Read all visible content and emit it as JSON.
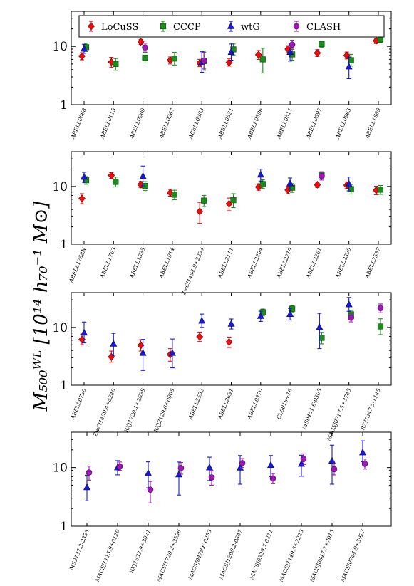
{
  "chart_data": {
    "type": "scatter",
    "y_axis_label": "M₅₀₀ᵂᴸ [10¹⁴ h₇₀⁻¹ M⊙]",
    "y_scale": "log",
    "ylim": [
      1,
      40
    ],
    "yticks": [
      "1",
      "10"
    ],
    "legend": {
      "placement": "top",
      "entries": [
        {
          "name": "LoCuSS",
          "marker": "diamond",
          "color": "#e41010"
        },
        {
          "name": "CCCP",
          "marker": "square",
          "color": "#1f8a1f"
        },
        {
          "name": "wtG",
          "marker": "triangle",
          "color": "#1a1ac8"
        },
        {
          "name": "CLASH",
          "marker": "circle",
          "color": "#9a1ab0"
        }
      ]
    },
    "panels": [
      {
        "clusters": [
          "ABELL0068",
          "ABELL0115",
          "ABELL0209",
          "ABELL0267",
          "ABELL0383",
          "ABELL0521",
          "ABELL0586",
          "ABELL0611",
          "ABELL0697",
          "ABELL0963",
          "ABELL1689"
        ],
        "series": {
          "LoCuSS": [
            [
              0,
              6.8,
              5.9,
              7.8
            ],
            [
              1,
              5.4,
              4.4,
              6.5
            ],
            [
              2,
              12.0,
              10.8,
              13.2
            ],
            [
              3,
              5.8,
              5.0,
              6.6
            ],
            [
              4,
              5.2,
              4.5,
              6.0
            ],
            [
              5,
              5.3,
              4.6,
              6.2
            ],
            [
              6,
              7.2,
              6.0,
              8.5
            ],
            [
              7,
              9.0,
              7.8,
              10.3
            ],
            [
              8,
              7.7,
              6.7,
              8.8
            ],
            [
              9,
              7.0,
              6.1,
              8.0
            ],
            [
              10,
              12.5,
              11.2,
              13.8
            ]
          ],
          "CCCP": [
            [
              0,
              9.7,
              8.2,
              11.3
            ],
            [
              1,
              5.0,
              3.9,
              6.2
            ],
            [
              2,
              6.4,
              5.2,
              7.8
            ],
            [
              3,
              6.2,
              4.8,
              7.9
            ],
            [
              4,
              5.6,
              3.9,
              8.3
            ],
            [
              5,
              8.9,
              7.1,
              11.0
            ],
            [
              6,
              6.0,
              3.5,
              9.3
            ],
            [
              7,
              7.3,
              5.8,
              9.0
            ],
            [
              8,
              11.0,
              9.7,
              12.3
            ],
            [
              9,
              5.8,
              4.6,
              7.3
            ],
            [
              10,
              13.2,
              11.7,
              14.8
            ]
          ],
          "wtG": [
            [
              0,
              9.1,
              7.6,
              10.9
            ],
            [
              4,
              5.4,
              3.6,
              8.1
            ],
            [
              5,
              8.0,
              5.8,
              11.0
            ],
            [
              7,
              8.0,
              5.6,
              11.4
            ],
            [
              9,
              4.5,
              2.8,
              6.6
            ]
          ],
          "CLASH": [
            [
              2,
              9.6,
              8.0,
              11.3
            ],
            [
              4,
              5.7,
              4.1,
              7.9
            ],
            [
              7,
              10.7,
              8.9,
              12.8
            ]
          ]
        }
      },
      {
        "clusters": [
          "ABELL1758N",
          "ABELL1763",
          "ABELL1835",
          "ABELL1914",
          "ZwCl1454.8+2233",
          "ABELL2111",
          "ABELL2204",
          "ABELL2219",
          "ABELL2261",
          "ABELL2390",
          "ABELL2537"
        ],
        "series": {
          "LoCuSS": [
            [
              0,
              6.2,
              5.0,
              7.5
            ],
            [
              1,
              15.5,
              13.8,
              17.3
            ],
            [
              2,
              10.8,
              9.5,
              12.2
            ],
            [
              3,
              7.8,
              6.8,
              8.9
            ],
            [
              4,
              3.7,
              2.3,
              5.3
            ],
            [
              5,
              5.0,
              3.8,
              6.3
            ],
            [
              6,
              9.8,
              8.6,
              11.1
            ],
            [
              7,
              8.7,
              7.5,
              10.0
            ],
            [
              8,
              10.7,
              9.6,
              11.9
            ],
            [
              9,
              10.5,
              9.2,
              11.9
            ],
            [
              10,
              8.6,
              7.2,
              10.1
            ]
          ],
          "CCCP": [
            [
              0,
              12.8,
              10.9,
              14.8
            ],
            [
              1,
              12.0,
              9.8,
              14.5
            ],
            [
              2,
              10.2,
              8.5,
              12.1
            ],
            [
              3,
              7.2,
              5.9,
              8.6
            ],
            [
              4,
              5.7,
              4.5,
              7.0
            ],
            [
              5,
              5.8,
              4.3,
              7.5
            ],
            [
              6,
              11.0,
              9.2,
              13.0
            ],
            [
              7,
              9.5,
              7.9,
              11.2
            ],
            [
              8,
              15.9,
              14.0,
              18.0
            ],
            [
              9,
              9.0,
              7.4,
              10.8
            ],
            [
              10,
              8.8,
              7.3,
              10.4
            ]
          ],
          "wtG": [
            [
              0,
              14.6,
              11.8,
              17.6
            ],
            [
              2,
              15.0,
              10.3,
              22.5
            ],
            [
              6,
              15.9,
              12.4,
              19.9
            ],
            [
              7,
              11.3,
              8.9,
              14.0
            ],
            [
              9,
              11.0,
              8.4,
              14.6
            ]
          ],
          "CLASH": [
            [
              8,
              15.2,
              12.9,
              17.7
            ]
          ]
        }
      },
      {
        "clusters": [
          "ABELL0750",
          "ZwCl1459.4+4240",
          "RXJ1720.1+2638",
          "RXJ2129.6+0005",
          "ABELL2552",
          "ABELL2631",
          "ABELL0370",
          "CL0016+16",
          "MS0451.6-0305",
          "MACSJ0717.5+3745",
          "RXJ1347.5-1145"
        ],
        "series": {
          "LoCuSS": [
            [
              0,
              6.2,
              5.0,
              7.5
            ],
            [
              1,
              3.1,
              2.5,
              3.9
            ],
            [
              2,
              4.9,
              3.9,
              6.1
            ],
            [
              3,
              3.4,
              2.6,
              4.3
            ],
            [
              4,
              6.9,
              5.7,
              8.3
            ],
            [
              5,
              5.6,
              4.5,
              6.8
            ]
          ],
          "CCCP": [
            [
              6,
              18.3,
              16.0,
              20.8
            ],
            [
              7,
              21.0,
              18.5,
              23.8
            ],
            [
              8,
              6.6,
              5.2,
              8.2
            ],
            [
              9,
              16.9,
              14.4,
              19.7
            ],
            [
              10,
              10.4,
              7.5,
              14.1
            ]
          ],
          "wtG": [
            [
              0,
              8.1,
              5.4,
              12.4
            ],
            [
              1,
              5.2,
              3.3,
              7.9
            ],
            [
              2,
              3.6,
              1.8,
              6.2
            ],
            [
              3,
              3.6,
              2.0,
              6.3
            ],
            [
              4,
              13.0,
              10.0,
              17.0
            ],
            [
              5,
              11.5,
              9.4,
              14.0
            ],
            [
              6,
              15.7,
              12.7,
              19.1
            ],
            [
              7,
              17.0,
              13.4,
              21.3
            ],
            [
              8,
              10.1,
              4.3,
              17.5
            ],
            [
              9,
              25.0,
              19.0,
              33.0
            ]
          ],
          "CLASH": [
            [
              9,
              14.7,
              12.5,
              17.2
            ],
            [
              10,
              21.6,
              17.9,
              25.4
            ]
          ]
        }
      },
      {
        "clusters": [
          "MS2137.3-2353",
          "MACSJ1115.9+0129",
          "RXJ1532.9+3021",
          "MACSJ1720.2+3536",
          "MACSJ0429.6-0253",
          "MACSJ1206.2-0847",
          "MACSJ0329.7-0211",
          "MACSJ1149.5+2223",
          "MACSJ0647.7+7015",
          "MACSJ0744.9+3927"
        ],
        "series": {
          "wtG": [
            [
              0,
              4.6,
              2.7,
              7.4
            ],
            [
              1,
              10.0,
              7.5,
              13.1
            ],
            [
              2,
              8.0,
              4.5,
              12.5
            ],
            [
              3,
              7.6,
              3.4,
              12.4
            ],
            [
              4,
              10.0,
              6.0,
              15.0
            ],
            [
              5,
              9.9,
              5.2,
              16.0
            ],
            [
              6,
              11.0,
              7.0,
              16.0
            ],
            [
              7,
              11.5,
              7.1,
              16.2
            ],
            [
              8,
              13.0,
              5.2,
              24.0
            ],
            [
              9,
              18.0,
              12.5,
              28.5
            ]
          ],
          "CLASH": [
            [
              0,
              8.2,
              6.1,
              10.6
            ],
            [
              1,
              10.5,
              8.9,
              12.4
            ],
            [
              2,
              4.2,
              2.5,
              5.8
            ],
            [
              3,
              9.8,
              7.7,
              12.2
            ],
            [
              4,
              6.8,
              5.0,
              8.8
            ],
            [
              5,
              11.9,
              10.0,
              14.2
            ],
            [
              6,
              6.5,
              5.3,
              7.9
            ],
            [
              7,
              14.0,
              11.3,
              17.1
            ],
            [
              8,
              9.4,
              7.5,
              11.6
            ],
            [
              9,
              11.6,
              9.4,
              14.0
            ]
          ]
        }
      }
    ]
  }
}
